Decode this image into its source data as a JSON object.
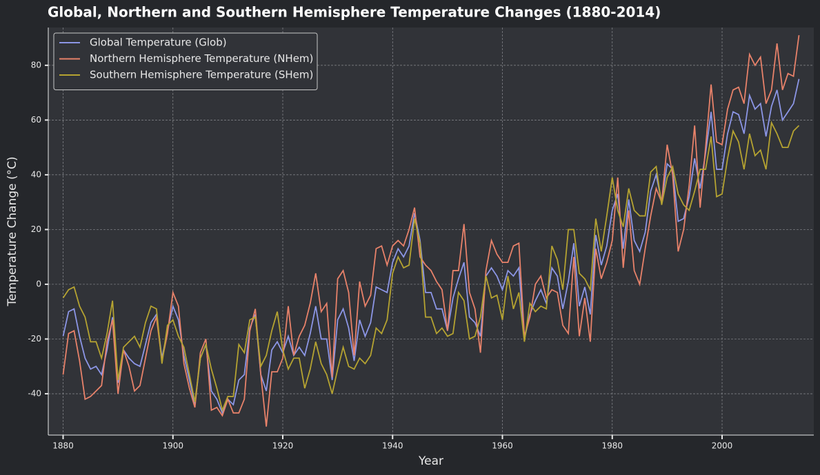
{
  "chart_data": {
    "type": "line",
    "title": "Global, Northern and Southern Hemisphere Temperature Changes (1880-2014)",
    "x_label": "Year",
    "y_label": "Temperature Change (°C)",
    "x": [
      1880,
      1881,
      1882,
      1883,
      1884,
      1885,
      1886,
      1887,
      1888,
      1889,
      1890,
      1891,
      1892,
      1893,
      1894,
      1895,
      1896,
      1897,
      1898,
      1899,
      1900,
      1901,
      1902,
      1903,
      1904,
      1905,
      1906,
      1907,
      1908,
      1909,
      1910,
      1911,
      1912,
      1913,
      1914,
      1915,
      1916,
      1917,
      1918,
      1919,
      1920,
      1921,
      1922,
      1923,
      1924,
      1925,
      1926,
      1927,
      1928,
      1929,
      1930,
      1931,
      1932,
      1933,
      1934,
      1935,
      1936,
      1937,
      1938,
      1939,
      1940,
      1941,
      1942,
      1943,
      1944,
      1945,
      1946,
      1947,
      1948,
      1949,
      1950,
      1951,
      1952,
      1953,
      1954,
      1955,
      1956,
      1957,
      1958,
      1959,
      1960,
      1961,
      1962,
      1963,
      1964,
      1965,
      1966,
      1967,
      1968,
      1969,
      1970,
      1971,
      1972,
      1973,
      1974,
      1975,
      1976,
      1977,
      1978,
      1979,
      1980,
      1981,
      1982,
      1983,
      1984,
      1985,
      1986,
      1987,
      1988,
      1989,
      1990,
      1991,
      1992,
      1993,
      1994,
      1995,
      1996,
      1997,
      1998,
      1999,
      2000,
      2001,
      2002,
      2003,
      2004,
      2005,
      2006,
      2007,
      2008,
      2009,
      2010,
      2011,
      2012,
      2013,
      2014
    ],
    "series": [
      {
        "name": "Global Temperature (Glob)",
        "color": "#8c96e6",
        "values": [
          -19,
          -10,
          -9,
          -19,
          -27,
          -31,
          -30,
          -33,
          -24,
          -12,
          -36,
          -24,
          -27,
          -29,
          -30,
          -22,
          -14,
          -11,
          -27,
          -17,
          -8,
          -13,
          -26,
          -35,
          -44,
          -27,
          -22,
          -39,
          -42,
          -47,
          -42,
          -44,
          -35,
          -33,
          -16,
          -11,
          -33,
          -39,
          -24,
          -21,
          -25,
          -19,
          -26,
          -23,
          -26,
          -18,
          -8,
          -20,
          -20,
          -35,
          -13,
          -9,
          -16,
          -28,
          -13,
          -19,
          -14,
          -1,
          -2,
          -3,
          8,
          13,
          10,
          14,
          26,
          16,
          -3,
          -3,
          -9,
          -9,
          -17,
          -5,
          2,
          8,
          -12,
          -14,
          -19,
          3,
          6,
          3,
          -2,
          5,
          3,
          6,
          -20,
          -11,
          -6,
          -2,
          -7,
          6,
          3,
          -9,
          1,
          15,
          -8,
          -1,
          -11,
          18,
          7,
          14,
          27,
          33,
          13,
          31,
          16,
          12,
          19,
          34,
          40,
          30,
          44,
          42,
          23,
          24,
          32,
          46,
          35,
          48,
          63,
          42,
          42,
          55,
          63,
          62,
          55,
          69,
          64,
          66,
          54,
          65,
          71,
          60,
          63,
          66,
          75
        ]
      },
      {
        "name": "Northern Hemisphere Temperature (NHem)",
        "color": "#e8826a",
        "values": [
          -33,
          -18,
          -17,
          -28,
          -42,
          -41,
          -39,
          -37,
          -21,
          -13,
          -40,
          -24,
          -30,
          -39,
          -37,
          -27,
          -17,
          -12,
          -28,
          -18,
          -3,
          -8,
          -29,
          -38,
          -45,
          -25,
          -20,
          -46,
          -45,
          -48,
          -42,
          -47,
          -47,
          -42,
          -17,
          -9,
          -33,
          -52,
          -32,
          -32,
          -27,
          -8,
          -26,
          -19,
          -15,
          -7,
          4,
          -10,
          -7,
          -34,
          2,
          5,
          -3,
          -26,
          1,
          -8,
          -4,
          13,
          14,
          7,
          14,
          16,
          14,
          20,
          28,
          10,
          7,
          5,
          1,
          -2,
          -17,
          5,
          5,
          22,
          -3,
          -9,
          -25,
          5,
          16,
          11,
          8,
          8,
          14,
          15,
          -19,
          -12,
          0,
          3,
          -5,
          -2,
          -3,
          -15,
          -18,
          10,
          -19,
          -5,
          -21,
          13,
          2,
          8,
          16,
          39,
          6,
          27,
          5,
          0,
          13,
          25,
          35,
          30,
          51,
          40,
          12,
          20,
          36,
          58,
          28,
          50,
          73,
          52,
          51,
          64,
          71,
          72,
          66,
          84,
          80,
          83,
          66,
          71,
          88,
          71,
          77,
          76,
          91
        ]
      },
      {
        "name": "Southern Hemisphere Temperature (SHem)",
        "color": "#b5a331",
        "values": [
          -5,
          -2,
          -1,
          -8,
          -12,
          -21,
          -21,
          -27,
          -18,
          -6,
          -35,
          -23,
          -21,
          -19,
          -23,
          -14,
          -8,
          -9,
          -29,
          -15,
          -13,
          -19,
          -23,
          -33,
          -43,
          -27,
          -22,
          -31,
          -38,
          -46,
          -41,
          -41,
          -22,
          -25,
          -13,
          -12,
          -30,
          -26,
          -17,
          -10,
          -24,
          -31,
          -27,
          -27,
          -38,
          -31,
          -21,
          -29,
          -33,
          -40,
          -31,
          -23,
          -30,
          -31,
          -27,
          -29,
          -26,
          -16,
          -18,
          -13,
          4,
          10,
          6,
          7,
          24,
          15,
          -12,
          -12,
          -18,
          -16,
          -19,
          -18,
          -3,
          -6,
          -20,
          -19,
          -12,
          3,
          -5,
          -4,
          -13,
          3,
          -9,
          -3,
          -21,
          -7,
          -10,
          -8,
          -9,
          14,
          9,
          -2,
          20,
          20,
          4,
          2,
          -2,
          24,
          12,
          25,
          39,
          27,
          21,
          35,
          27,
          25,
          25,
          41,
          43,
          29,
          39,
          43,
          33,
          29,
          27,
          34,
          42,
          42,
          54,
          32,
          33,
          46,
          56,
          52,
          42,
          55,
          47,
          49,
          42,
          59,
          55,
          50,
          50,
          56,
          58
        ]
      }
    ],
    "xlim": [
      1877.3,
      2016.7
    ],
    "xticks": [
      1880,
      1900,
      1920,
      1940,
      1960,
      1980,
      2000
    ],
    "ylim": [
      -55.1,
      93.8
    ],
    "yticks": [
      -40,
      -20,
      0,
      20,
      40,
      60,
      80
    ],
    "grid": true,
    "legend": "upper left"
  }
}
